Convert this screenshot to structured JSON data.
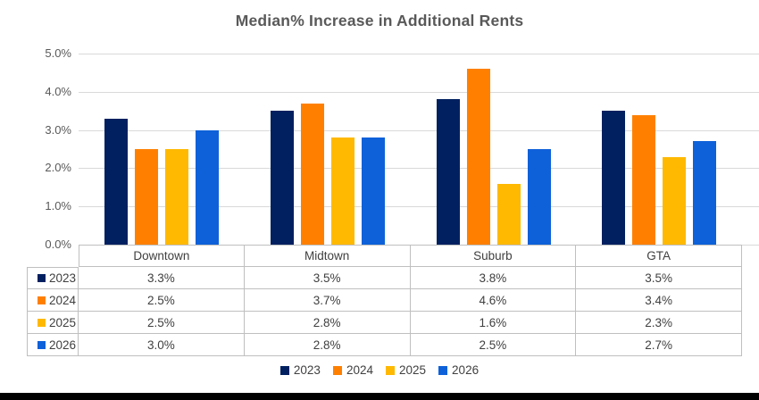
{
  "title": "Median% Increase in Additional Rents",
  "colors": {
    "series_2023": "#002060",
    "series_2024": "#ff8000",
    "series_2025": "#ffb900",
    "series_2026": "#0e61d9",
    "gridline": "#d9d9d9",
    "table_border": "#bfbfbf",
    "title_text": "#595959",
    "axis_text": "#595959",
    "table_text": "#404040",
    "footer_bar": "#000000"
  },
  "chart_data": {
    "type": "bar",
    "title": "Median% Increase in Additional Rents",
    "categories": [
      "Downtown",
      "Midtown",
      "Suburb",
      "GTA"
    ],
    "series": [
      {
        "name": "2023",
        "color": "#002060",
        "values": [
          3.3,
          3.5,
          3.8,
          3.5
        ]
      },
      {
        "name": "2024",
        "color": "#ff8000",
        "values": [
          2.5,
          3.7,
          4.6,
          3.4
        ]
      },
      {
        "name": "2025",
        "color": "#ffb900",
        "values": [
          2.5,
          2.8,
          1.6,
          2.3
        ]
      },
      {
        "name": "2026",
        "color": "#0e61d9",
        "values": [
          3.0,
          2.8,
          2.5,
          2.7
        ]
      }
    ],
    "value_labels": [
      [
        "3.3%",
        "3.5%",
        "3.8%",
        "3.5%"
      ],
      [
        "2.5%",
        "3.7%",
        "4.6%",
        "3.4%"
      ],
      [
        "2.5%",
        "2.8%",
        "1.6%",
        "2.3%"
      ],
      [
        "3.0%",
        "2.8%",
        "2.5%",
        "2.7%"
      ]
    ],
    "y_axis": {
      "min": 0,
      "max": 5,
      "step": 1,
      "ticks": [
        "5.0%",
        "4.0%",
        "3.0%",
        "2.0%",
        "1.0%",
        "0.0%"
      ],
      "format": "percent"
    },
    "legend": [
      "2023",
      "2024",
      "2025",
      "2026"
    ],
    "legend_position": "bottom",
    "grid": true,
    "data_table_shown": true
  }
}
